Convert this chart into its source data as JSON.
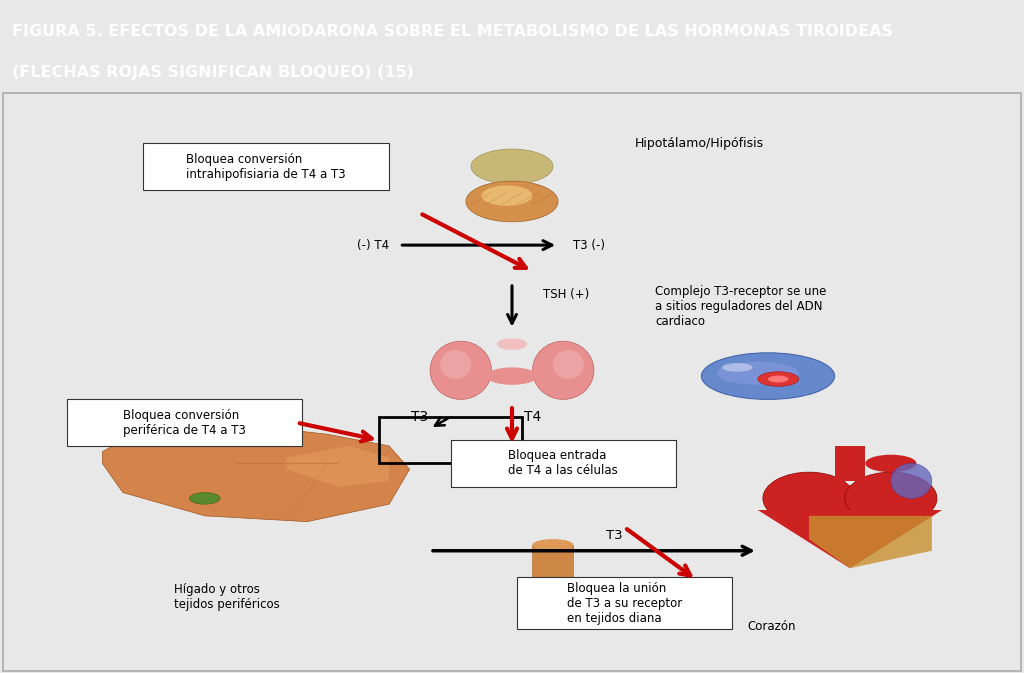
{
  "title_line1": "FIGURA 5. EFECTOS DE LA AMIODARONA SOBRE EL METABOLISMO DE LAS HORMONAS TIROIDEAS",
  "title_line2": "(FLECHAS ROJAS SIGNIFICAN BLOQUEO) (15)",
  "title_bg_color": "#1e3a6e",
  "title_text_color": "#ffffff",
  "bg_color": "#e8e8e8",
  "content_bg_color": "#ffffff",
  "labels": {
    "hipotalamo": "Hipotálamo/Hipófisis",
    "bloquea_conv_intra": "Bloquea conversión\nintrahipofisiaria de T4 a T3",
    "minus_T4": "(-) T4",
    "T3_minus": "T3 (-)",
    "TSH_plus": "TSH (+)",
    "T3_label": "T3",
    "T4_label": "T4",
    "bloquea_conv_peri": "Bloquea conversión\nperiférica de T4 a T3",
    "bloquea_entrada": "Bloquea entrada\nde T4 a las células",
    "complejo_T3": "Complejo T3-receptor se une\na sitios reguladores del ADN\ncardiaco",
    "higado": "Hígado y otros\ntejidos periféricos",
    "T3_arrow_label": "T3",
    "bloquea_union": "Bloquea la unión\nde T3 a su receptor\nen tejidos diana",
    "corazon": "Corazón"
  },
  "arrow_black": "#000000",
  "arrow_red": "#cc0000",
  "font_size_title": 11.5,
  "font_size_label": 9,
  "font_size_small": 8.5
}
